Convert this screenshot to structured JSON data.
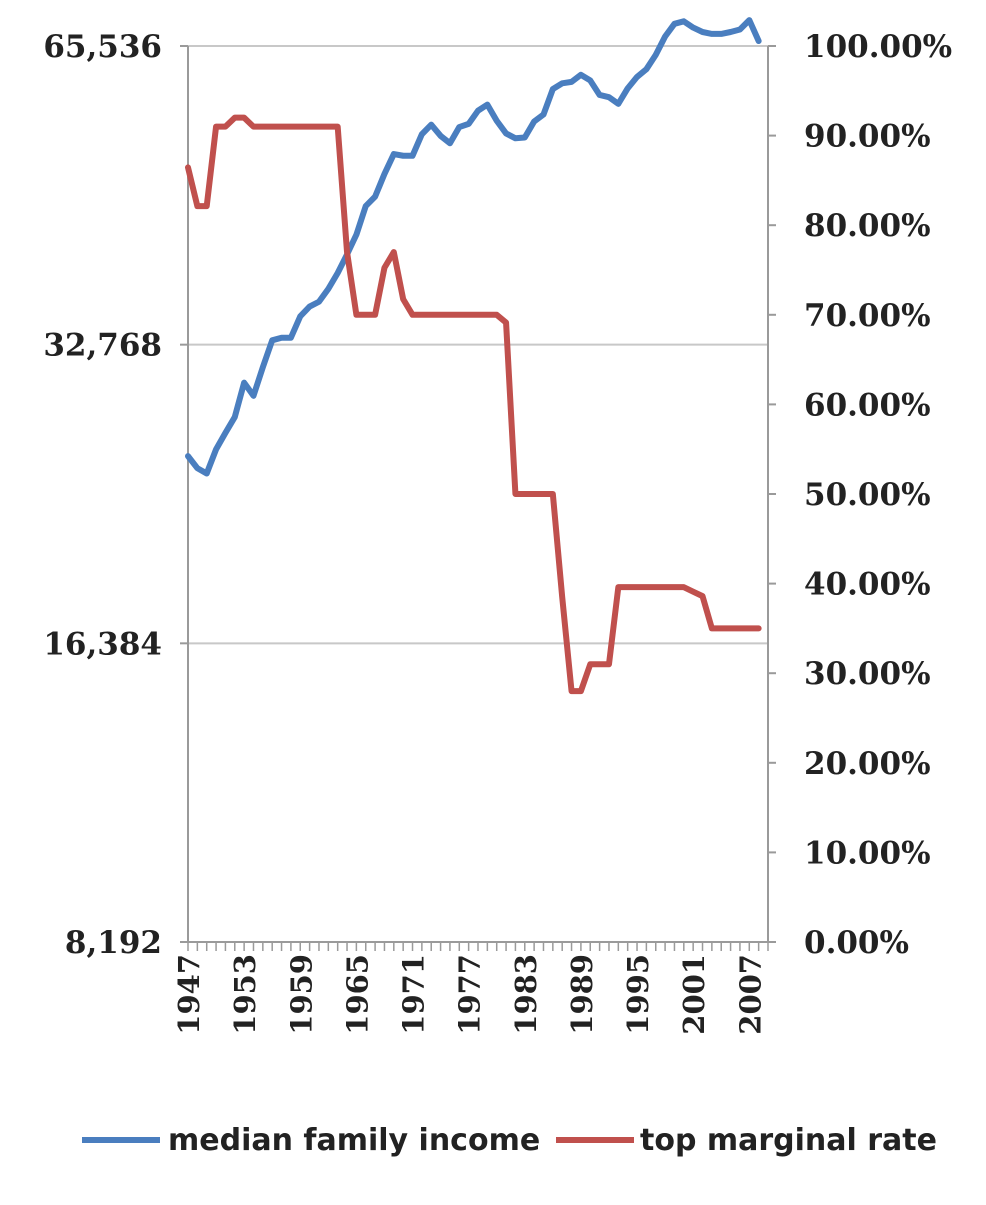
{
  "chart_data": {
    "type": "line",
    "title": "",
    "grid": true,
    "legend_position": "bottom",
    "x_start": 1947,
    "x_end": 2009,
    "x_tick_labels": [
      "1947",
      "1953",
      "1959",
      "1965",
      "1971",
      "1977",
      "1983",
      "1989",
      "1995",
      "2001",
      "2007"
    ],
    "y_left": {
      "scale": "log2",
      "range": [
        8192,
        65536
      ],
      "tick_values": [
        8192,
        16384,
        32768,
        65536
      ],
      "tick_labels": [
        "8,192",
        "16,384",
        "32,768",
        "65,536"
      ]
    },
    "y_right": {
      "scale": "linear",
      "range": [
        0,
        100
      ],
      "tick_values": [
        0,
        10,
        20,
        30,
        40,
        50,
        60,
        70,
        80,
        90,
        100
      ],
      "tick_labels": [
        "0.00%",
        "10.00%",
        "20.00%",
        "30.00%",
        "40.00%",
        "50.00%",
        "60.00%",
        "70.00%",
        "80.00%",
        "90.00%",
        "100.00%"
      ]
    },
    "series": [
      {
        "name": "median family income",
        "axis": "left",
        "color": "#4a7ebf",
        "x": [
          1947,
          1948,
          1949,
          1950,
          1951,
          1952,
          1953,
          1954,
          1955,
          1956,
          1957,
          1958,
          1959,
          1960,
          1961,
          1962,
          1963,
          1964,
          1965,
          1966,
          1967,
          1968,
          1969,
          1970,
          1971,
          1972,
          1973,
          1974,
          1975,
          1976,
          1977,
          1978,
          1979,
          1980,
          1981,
          1982,
          1983,
          1984,
          1985,
          1986,
          1987,
          1988,
          1989,
          1990,
          1991,
          1992,
          1993,
          1994,
          1995,
          1996,
          1997,
          1998,
          1999,
          2000,
          2001,
          2002,
          2003,
          2004,
          2005,
          2006,
          2007,
          2008
        ],
        "values": [
          25300,
          24600,
          24300,
          25700,
          26700,
          27700,
          30000,
          29100,
          31100,
          33100,
          33300,
          33300,
          35000,
          35800,
          36200,
          37300,
          38700,
          40400,
          42300,
          45200,
          46200,
          48700,
          51000,
          50800,
          50800,
          53400,
          54600,
          53200,
          52300,
          54300,
          54700,
          56400,
          57200,
          55100,
          53500,
          52900,
          53000,
          55000,
          55900,
          59300,
          60100,
          60300,
          61300,
          60500,
          58500,
          58200,
          57300,
          59400,
          61000,
          62100,
          64200,
          67000,
          69000,
          69400,
          68400,
          67700,
          67400,
          67400,
          67700,
          68100,
          69600,
          66300
        ]
      },
      {
        "name": "top marginal rate",
        "axis": "right",
        "color": "#c0504d",
        "x": [
          1947,
          1948,
          1949,
          1950,
          1951,
          1952,
          1953,
          1954,
          1955,
          1956,
          1957,
          1958,
          1959,
          1960,
          1961,
          1962,
          1963,
          1964,
          1965,
          1966,
          1967,
          1968,
          1969,
          1970,
          1971,
          1972,
          1973,
          1974,
          1975,
          1976,
          1977,
          1978,
          1979,
          1980,
          1981,
          1982,
          1983,
          1984,
          1985,
          1986,
          1987,
          1988,
          1989,
          1990,
          1991,
          1992,
          1993,
          1994,
          1995,
          1996,
          1997,
          1998,
          1999,
          2000,
          2001,
          2002,
          2003,
          2004,
          2005,
          2006,
          2007,
          2008
        ],
        "values": [
          86.45,
          82.13,
          82.13,
          91,
          91,
          92,
          92,
          91,
          91,
          91,
          91,
          91,
          91,
          91,
          91,
          91,
          91,
          77,
          70,
          70,
          70,
          75.25,
          77,
          71.75,
          70,
          70,
          70,
          70,
          70,
          70,
          70,
          70,
          70,
          70,
          69.13,
          50,
          50,
          50,
          50,
          50,
          38.5,
          28,
          28,
          31,
          31,
          31,
          39.6,
          39.6,
          39.6,
          39.6,
          39.6,
          39.6,
          39.6,
          39.6,
          39.1,
          38.6,
          35,
          35,
          35,
          35,
          35,
          35
        ]
      }
    ]
  }
}
